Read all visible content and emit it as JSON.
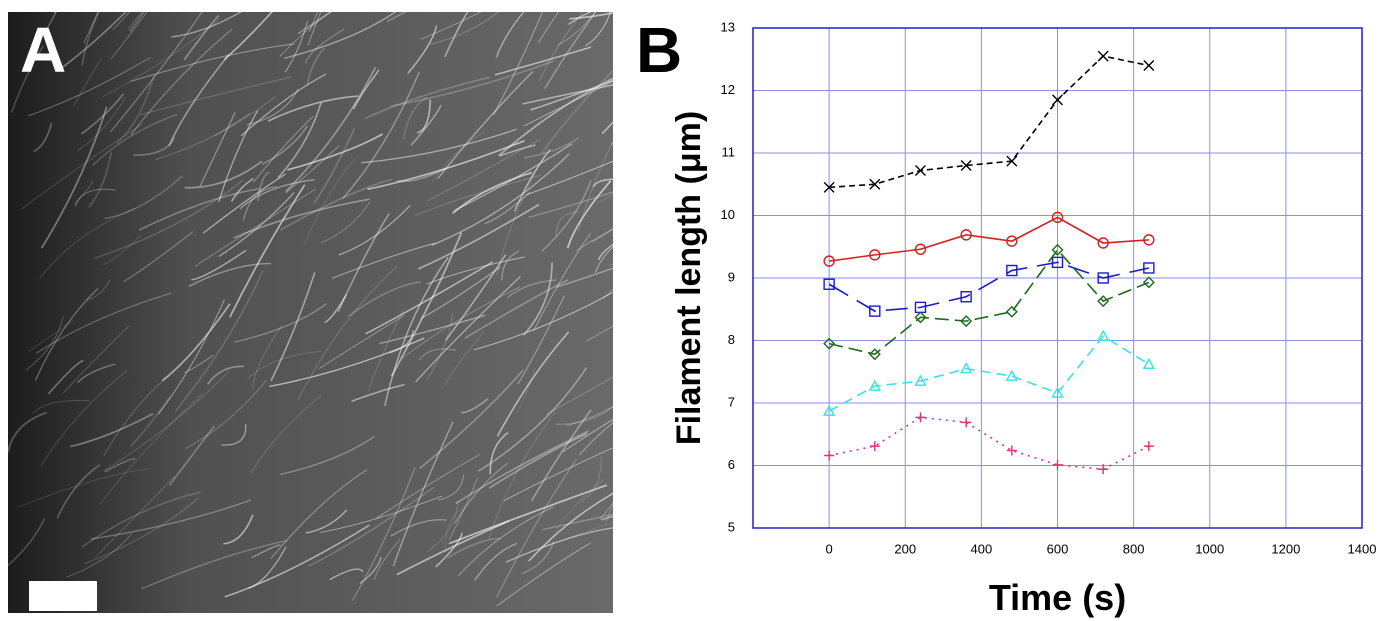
{
  "panel_labels": [
    "A",
    "B"
  ],
  "chart_data": {
    "type": "line",
    "xlabel": "Time (s)",
    "ylabel": "Filament length (μm)",
    "xlim": [
      -200,
      1400
    ],
    "xticks": [
      0,
      200,
      400,
      600,
      800,
      1000,
      1200,
      1400
    ],
    "ylim": [
      5,
      13
    ],
    "yticks": [
      5,
      6,
      7,
      8,
      9,
      10,
      11,
      12,
      13
    ],
    "grid": true,
    "x": [
      0,
      120,
      240,
      360,
      480,
      600,
      720,
      840
    ],
    "series": [
      {
        "color": "#000000",
        "marker": "x",
        "dash": "6,4",
        "values": [
          10.45,
          10.5,
          10.72,
          10.8,
          10.87,
          11.85,
          12.55,
          12.4
        ]
      },
      {
        "color": "#d42020",
        "marker": "circle",
        "dash": "none",
        "values": [
          9.27,
          9.37,
          9.46,
          9.69,
          9.59,
          9.97,
          9.56,
          9.61
        ]
      },
      {
        "color": "#1a1ad0",
        "marker": "square",
        "dash": "22,10",
        "values": [
          8.9,
          8.47,
          8.53,
          8.7,
          9.12,
          9.25,
          9.0,
          9.16
        ]
      },
      {
        "color": "#1d6a1d",
        "marker": "diamond",
        "dash": "14,6",
        "values": [
          7.95,
          7.78,
          8.37,
          8.31,
          8.46,
          9.45,
          8.63,
          8.93
        ]
      },
      {
        "color": "#3fe0e8",
        "marker": "triangle",
        "dash": "10,6",
        "values": [
          6.87,
          7.27,
          7.35,
          7.55,
          7.43,
          7.16,
          8.07,
          7.62
        ]
      },
      {
        "color": "#e0307a",
        "marker": "plus",
        "dash": "2,5",
        "values": [
          6.16,
          6.31,
          6.77,
          6.69,
          6.24,
          6.01,
          5.94,
          6.31
        ]
      }
    ]
  }
}
